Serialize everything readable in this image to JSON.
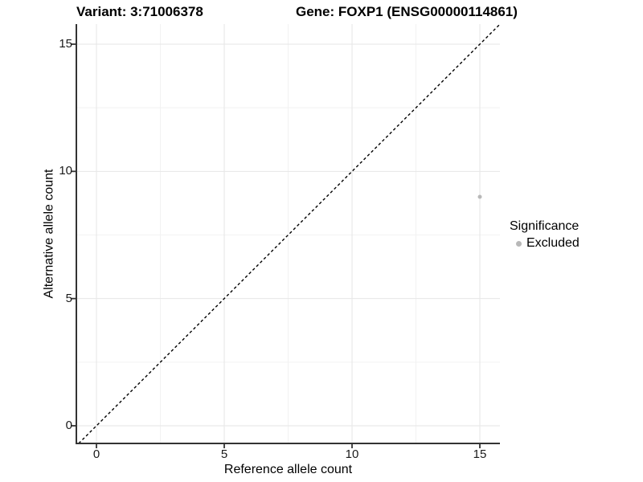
{
  "chart_data": {
    "type": "scatter",
    "titles": {
      "left": "Variant: 3:71006378",
      "right": "Gene: FOXP1 (ENSG00000114861)"
    },
    "xlabel": "Reference allele count",
    "ylabel": "Alternative allele count",
    "xlim": [
      -0.8,
      15.8
    ],
    "ylim": [
      -0.7,
      15.8
    ],
    "x_major_ticks": [
      0,
      5,
      10,
      15
    ],
    "y_major_ticks": [
      0,
      5,
      10,
      15
    ],
    "x_tick_labels": [
      "0",
      "5",
      "10",
      "15"
    ],
    "y_tick_labels": [
      "0",
      "5",
      "10",
      "15"
    ],
    "x_minor_ticks": [
      2.5,
      7.5,
      12.5
    ],
    "y_minor_ticks": [
      2.5,
      7.5,
      12.5
    ],
    "grid": "major+minor",
    "reference_line": {
      "type": "identity y=x",
      "style": "dashed",
      "color": "#000000"
    },
    "series": [
      {
        "name": "Excluded",
        "color": "#b8b8b8",
        "points": [
          {
            "x": 15,
            "y": 9
          }
        ]
      }
    ],
    "legend": {
      "title": "Significance",
      "position": "right",
      "entries": [
        {
          "label": "Excluded",
          "color": "#b8b8b8"
        }
      ]
    },
    "colors": {
      "background": "#ffffff",
      "axis_line": "#333333",
      "tick_label": "#1a1a1a",
      "grid_major": "#e6e6e6",
      "grid_minor": "#f2f2f2",
      "point": "#b8b8b8"
    }
  }
}
